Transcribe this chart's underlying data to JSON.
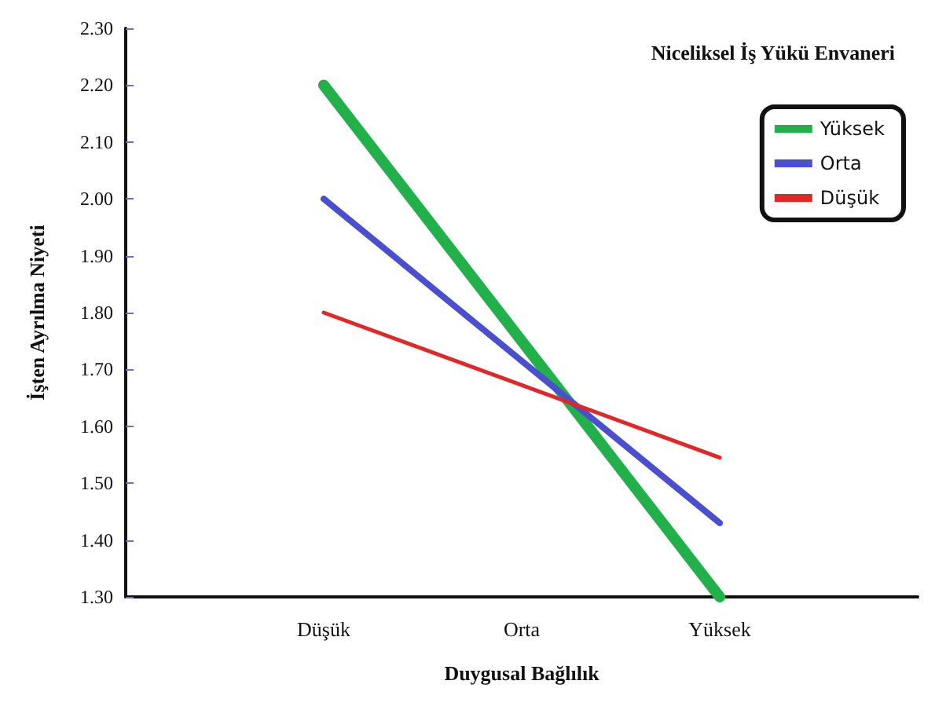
{
  "chart_data": {
    "type": "line",
    "title": "Niceliksel İş Yükü Envaneri",
    "xlabel": "Duygusal Bağlılık",
    "ylabel": "İşten Ayrılma Niyeti",
    "categories": [
      null,
      "Düşük",
      "Orta",
      "Yüksek",
      null
    ],
    "series": [
      {
        "name": "Yüksek",
        "color": "#22b04b",
        "values": [
          null,
          2.2,
          null,
          1.3,
          null
        ]
      },
      {
        "name": "Orta",
        "color": "#4a4fd0",
        "values": [
          null,
          2.0,
          null,
          1.43,
          null
        ]
      },
      {
        "name": "Düşük",
        "color": "#e02828",
        "values": [
          null,
          1.8,
          null,
          1.545,
          null
        ]
      }
    ],
    "ylim": [
      1.3,
      2.3
    ],
    "yticks": [
      {
        "value": 1.3,
        "label": "1.30"
      },
      {
        "value": 1.4,
        "label": "1.40"
      },
      {
        "value": 1.5,
        "label": "1.50"
      },
      {
        "value": 1.6,
        "label": "1.60"
      },
      {
        "value": 1.7,
        "label": "1.70"
      },
      {
        "value": 1.8,
        "label": "1.80"
      },
      {
        "value": 1.9,
        "label": "1.90"
      },
      {
        "value": 2.0,
        "label": "2.00"
      },
      {
        "value": 2.1,
        "label": "2.10"
      },
      {
        "value": 2.2,
        "label": "2.20"
      },
      {
        "value": 2.3,
        "label": "2.30"
      }
    ],
    "grid": false,
    "legend": "top right",
    "marker": "none",
    "line_style": "solid"
  }
}
